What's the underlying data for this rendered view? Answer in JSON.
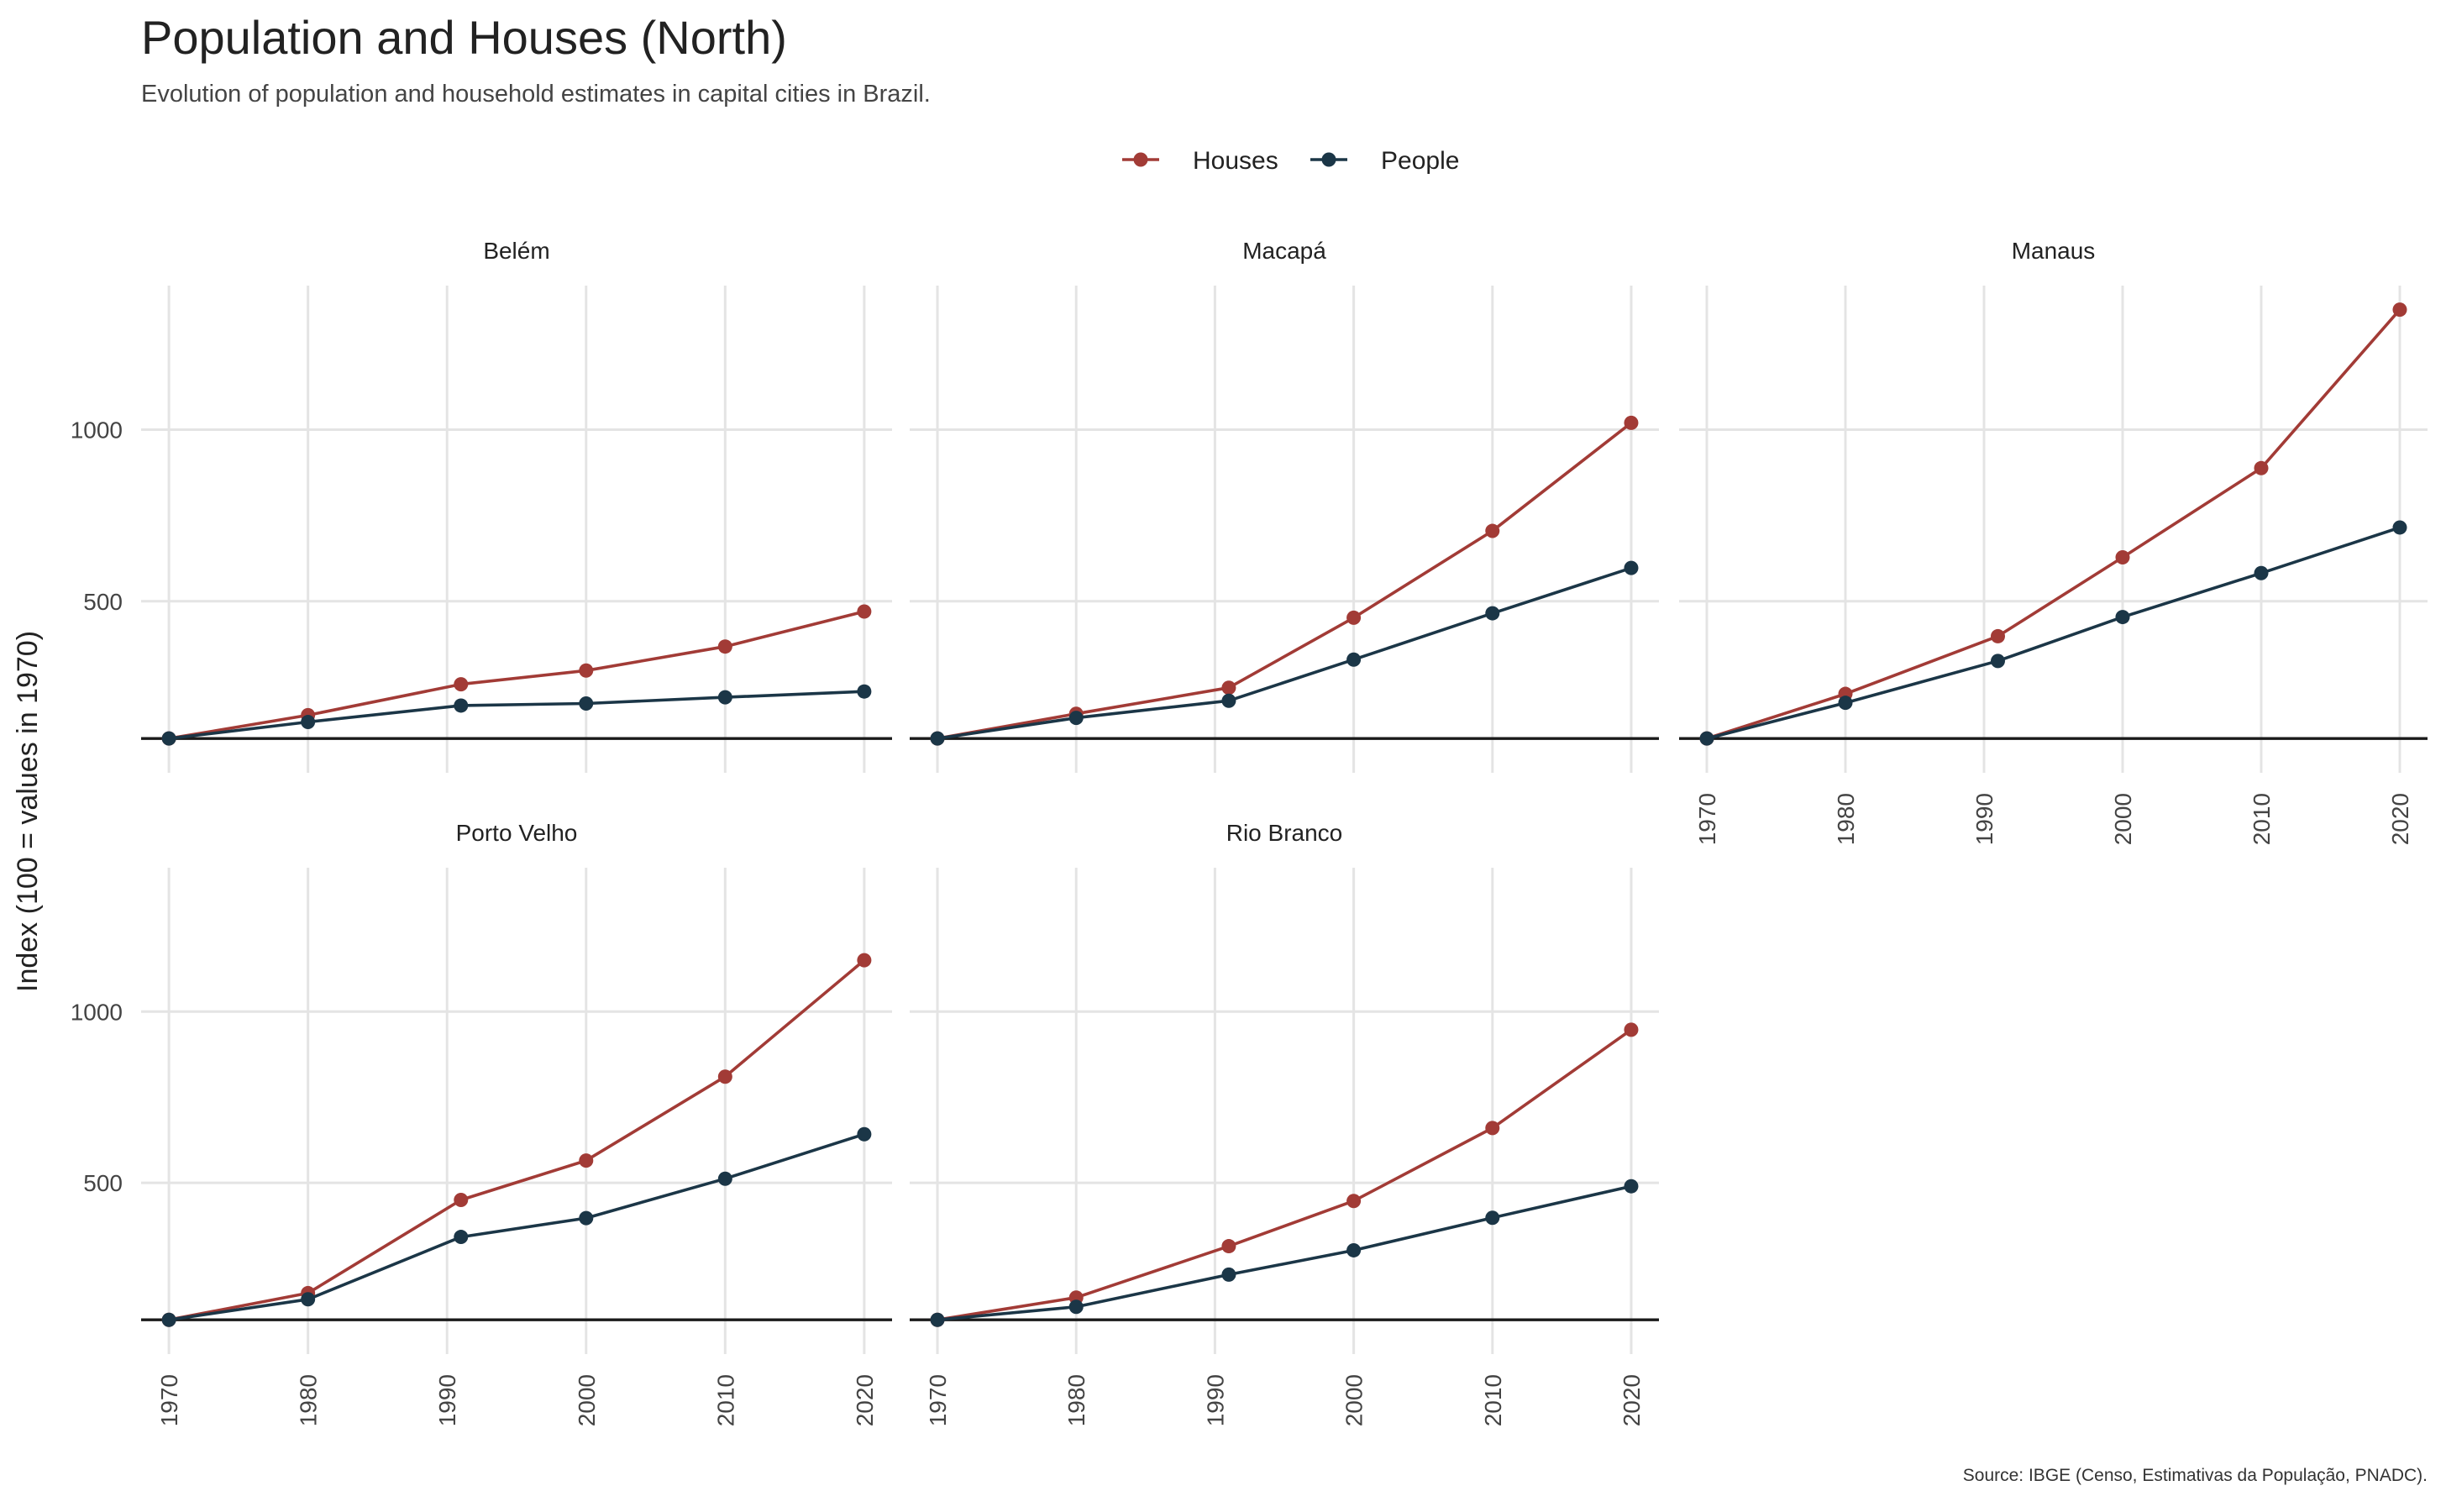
{
  "title": "Population and Houses (North)",
  "subtitle": "Evolution of population and household estimates in capital cities in Brazil.",
  "caption": "Source: IBGE (Censo, Estimativas da População, PNADC).",
  "colors": {
    "houses": "#a23b36",
    "people": "#1b3647",
    "grid": "#e4e4e4",
    "baseline": "#1a1a1a"
  },
  "chart_data": {
    "type": "line",
    "ylabel": "Index (100 = values in 1970)",
    "xlabel": "",
    "y_ticks": [
      500,
      1000
    ],
    "x_ticks": [
      1970,
      1980,
      1990,
      2000,
      2010,
      2020
    ],
    "baseline": 100,
    "ylim": [
      0,
      1420
    ],
    "xlim": [
      1968,
      2022
    ],
    "legend": {
      "position": "top",
      "entries": [
        "Houses",
        "People"
      ]
    },
    "grid": true,
    "x": [
      1970,
      1980,
      1991,
      2000,
      2010,
      2020
    ],
    "panels": [
      {
        "name": "Belém",
        "series": [
          {
            "name": "Houses",
            "values": [
              100,
              168,
              258,
              298,
              368,
              470
            ]
          },
          {
            "name": "People",
            "values": [
              100,
              148,
              196,
              202,
              220,
              237
            ]
          }
        ]
      },
      {
        "name": "Macapá",
        "series": [
          {
            "name": "Houses",
            "values": [
              100,
              172,
              248,
              452,
              705,
              1020
            ]
          },
          {
            "name": "People",
            "values": [
              100,
              160,
              210,
              330,
              465,
              597
            ]
          }
        ]
      },
      {
        "name": "Manaus",
        "series": [
          {
            "name": "Houses",
            "values": [
              100,
              230,
              398,
              628,
              888,
              1350
            ]
          },
          {
            "name": "People",
            "values": [
              100,
              204,
              326,
              454,
              582,
              715
            ]
          }
        ]
      },
      {
        "name": "Porto Velho",
        "series": [
          {
            "name": "Houses",
            "values": [
              100,
              178,
              450,
              565,
              810,
              1150
            ]
          },
          {
            "name": "People",
            "values": [
              100,
              160,
              342,
              397,
              512,
              642
            ]
          }
        ]
      },
      {
        "name": "Rio Branco",
        "series": [
          {
            "name": "Houses",
            "values": [
              100,
              165,
              315,
              447,
              660,
              947
            ]
          },
          {
            "name": "People",
            "values": [
              100,
              138,
              232,
              303,
              398,
              490
            ]
          }
        ]
      }
    ]
  }
}
